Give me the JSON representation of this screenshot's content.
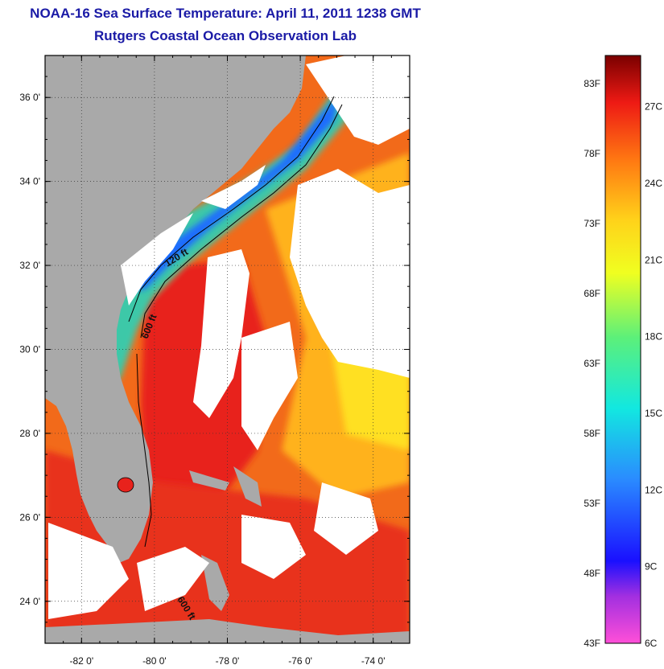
{
  "title": "NOAA-16 Sea Surface Temperature:  April 11, 2011 1238 GMT",
  "subtitle": "Rutgers Coastal Ocean Observation Lab",
  "map": {
    "lon_range": [
      -83,
      -73
    ],
    "lat_range": [
      23,
      37
    ],
    "lat_ticks": [
      {
        "value": 36,
        "label": "36 0'"
      },
      {
        "value": 34,
        "label": "34 0'"
      },
      {
        "value": 32,
        "label": "32 0'"
      },
      {
        "value": 30,
        "label": "30 0'"
      },
      {
        "value": 28,
        "label": "28 0'"
      },
      {
        "value": 26,
        "label": "26 0'"
      },
      {
        "value": 24,
        "label": "24 0'"
      }
    ],
    "lon_ticks": [
      {
        "value": -82,
        "label": "-82 0'"
      },
      {
        "value": -80,
        "label": "-80 0'"
      },
      {
        "value": -78,
        "label": "-78 0'"
      },
      {
        "value": -76,
        "label": "-76 0'"
      },
      {
        "value": -74,
        "label": "-74 0'"
      }
    ],
    "contour_labels": [
      "120 ft",
      "600 ft",
      "600 ft"
    ],
    "colors": {
      "land": "#a9a9a9",
      "cloud": "#ffffff",
      "warm_water": "#e8221c",
      "mid_water": "#ff8a1a",
      "cool_water": "#ffd21a",
      "cold_water": "#2aa8ff"
    }
  },
  "colorbar": {
    "f_range": [
      43,
      85
    ],
    "c_range": [
      6,
      29
    ],
    "f_labels": [
      {
        "value": 83,
        "label": "83F"
      },
      {
        "value": 78,
        "label": "78F"
      },
      {
        "value": 73,
        "label": "73F"
      },
      {
        "value": 68,
        "label": "68F"
      },
      {
        "value": 63,
        "label": "63F"
      },
      {
        "value": 58,
        "label": "58F"
      },
      {
        "value": 53,
        "label": "53F"
      },
      {
        "value": 48,
        "label": "48F"
      },
      {
        "value": 43,
        "label": "43F"
      }
    ],
    "c_labels": [
      {
        "value": 27,
        "label": "27C"
      },
      {
        "value": 24,
        "label": "24C"
      },
      {
        "value": 21,
        "label": "21C"
      },
      {
        "value": 18,
        "label": "18C"
      },
      {
        "value": 15,
        "label": "15C"
      },
      {
        "value": 12,
        "label": "12C"
      },
      {
        "value": 9,
        "label": "9C"
      },
      {
        "value": 6,
        "label": "6C"
      }
    ]
  }
}
